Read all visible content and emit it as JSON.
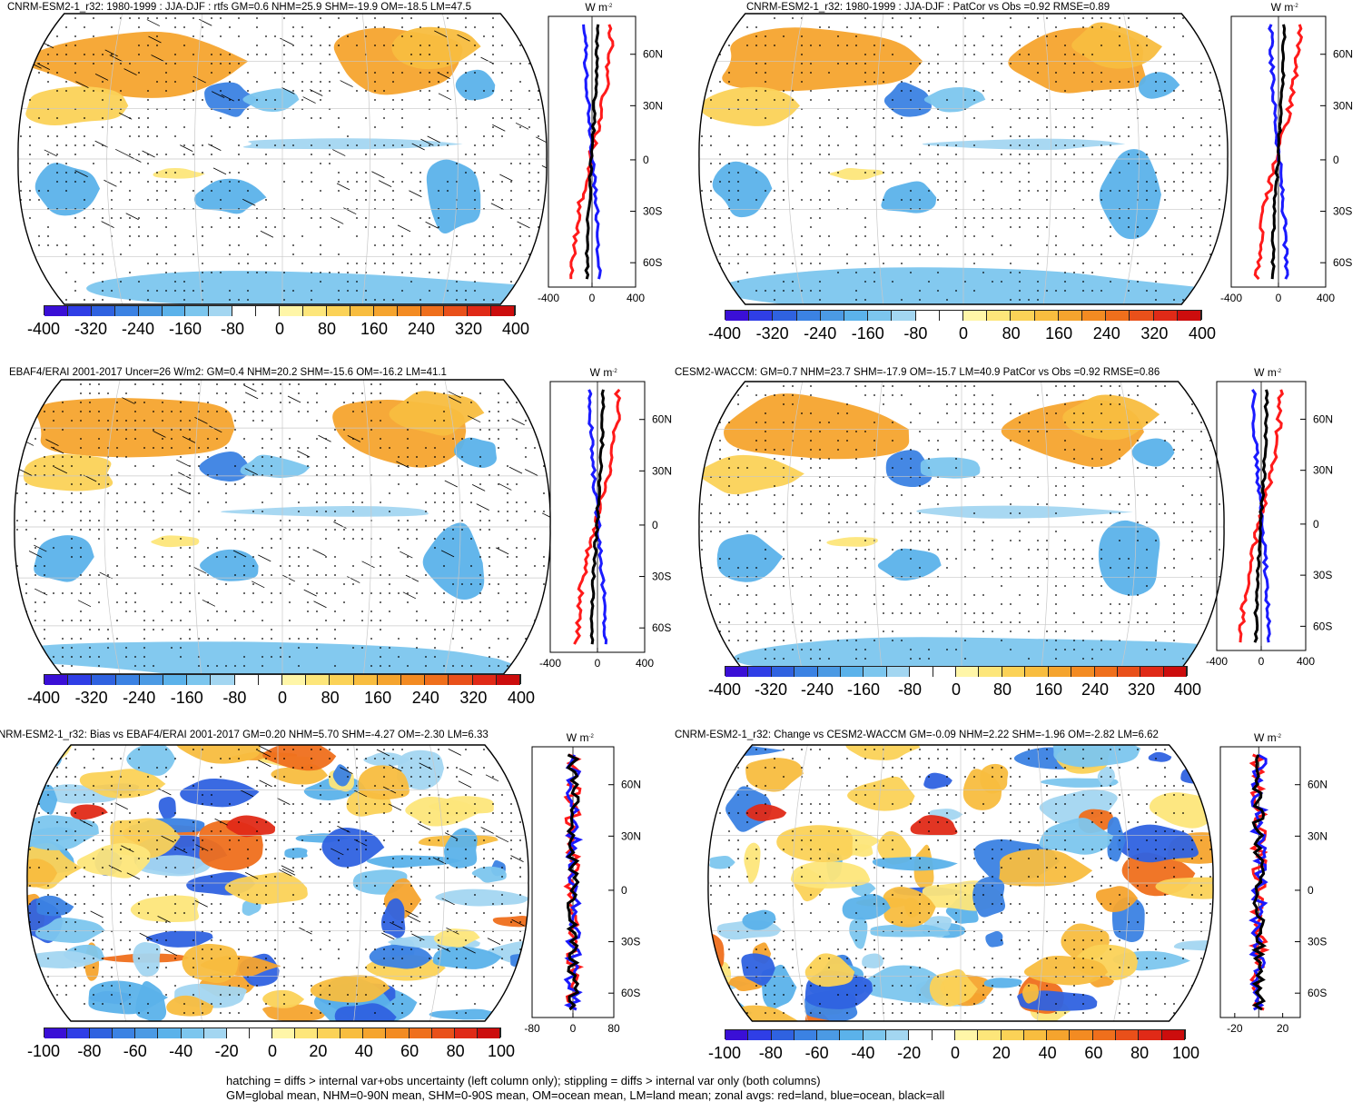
{
  "panels": [
    {
      "title": "CNRM-ESM2-1_r32: 1980-1999 : JJA-DJF : rtfs GM=0.6 NHM=25.9 SHM=-19.9 OM=-18.5 LM=47.5",
      "colorbar": [
        "-400",
        "-320",
        "-240",
        "-160",
        "-80",
        "0",
        "80",
        "160",
        "240",
        "320",
        "400"
      ],
      "zonal_xticks": [
        "-400",
        "0",
        "400"
      ],
      "hatched": true
    },
    {
      "title": "CNRM-ESM2-1_r32: 1980-1999 : JJA-DJF : PatCor vs Obs =0.92 RMSE=0.89",
      "colorbar": [
        "-400",
        "-320",
        "-240",
        "-160",
        "-80",
        "0",
        "80",
        "160",
        "240",
        "320",
        "400"
      ],
      "zonal_xticks": [
        "-400",
        "0",
        "400"
      ],
      "hatched": false
    },
    {
      "title": "EBAF4/ERAI 2001-2017 Uncer=26 W/m2: GM=0.4 NHM=20.2 SHM=-15.6 OM=-16.2 LM=41.1",
      "colorbar": [
        "-400",
        "-320",
        "-240",
        "-160",
        "-80",
        "0",
        "80",
        "160",
        "240",
        "320",
        "400"
      ],
      "zonal_xticks": [
        "-400",
        "0",
        "400"
      ],
      "hatched": true
    },
    {
      "title": "CESM2-WACCM: GM=0.7 NHM=23.7 SHM=-17.9 OM=-15.7 LM=40.9 PatCor vs Obs =0.92 RMSE=0.86",
      "colorbar": [
        "-400",
        "-320",
        "-240",
        "-160",
        "-80",
        "0",
        "80",
        "160",
        "240",
        "320",
        "400"
      ],
      "zonal_xticks": [
        "-400",
        "0",
        "400"
      ],
      "hatched": false
    },
    {
      "title": "NRM-ESM2-1_r32: Bias vs EBAF4/ERAI 2001-2017 GM=0.20 NHM=5.70 SHM=-4.27 OM=-2.30 LM=6.33",
      "colorbar": [
        "-100",
        "-80",
        "-60",
        "-40",
        "-20",
        "0",
        "20",
        "40",
        "60",
        "80",
        "100"
      ],
      "zonal_xticks": [
        "-80",
        "0",
        "80"
      ],
      "hatched": true
    },
    {
      "title": "CNRM-ESM2-1_r32: Change vs CESM2-WACCM GM=-0.09 NHM=2.22 SHM=-1.96 OM=-2.82 LM=6.62",
      "colorbar": [
        "-100",
        "-80",
        "-60",
        "-40",
        "-20",
        "0",
        "20",
        "40",
        "60",
        "80",
        "100"
      ],
      "zonal_xticks": [
        "-20",
        "20"
      ],
      "hatched": false
    }
  ],
  "zonal_units": "W m",
  "zonal_units_exp": "-2",
  "lat_ticks": [
    "60N",
    "30N",
    "0",
    "30S",
    "60S"
  ],
  "palette": [
    "#3a0fd6",
    "#2f3ee6",
    "#2f62e0",
    "#3b82e3",
    "#4b9ae4",
    "#5bb2ea",
    "#7cc6ee",
    "#a3d6f1",
    "#ffffff",
    "#ffffff",
    "#fff6a8",
    "#fde67a",
    "#fbd257",
    "#f8bd3f",
    "#f5a42e",
    "#f38b22",
    "#ef6f1c",
    "#e9501a",
    "#e02a17",
    "#cc0d0d"
  ],
  "footer": {
    "line1": "hatching = diffs > internal var+obs uncertainty (left column only); stippling = diffs > internal var only (both columns)",
    "line2": "GM=global mean, NHM=0-90N mean, SHM=0-90S mean, OM=ocean mean, LM=land mean; zonal avgs: red=land, blue=ocean, black=all"
  }
}
